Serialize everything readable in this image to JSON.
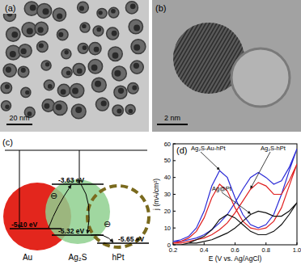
{
  "panels": {
    "a": {
      "label": "(a)",
      "scale_bar": "20 nm"
    },
    "b": {
      "label": "(b)",
      "scale_bar": "2 nm"
    },
    "c": {
      "label": "(c)",
      "electron": "⊖",
      "nodes": [
        {
          "label": "Au",
          "color": "#e3261d",
          "levels": [
            "-5.10 eV"
          ]
        },
        {
          "label": "Ag₂S",
          "color": "#8fd08f",
          "levels": [
            "-3.63 eV",
            "-5.32 eV"
          ]
        },
        {
          "label": "hPt",
          "color": "#7a6a1e",
          "levels": [
            "-5.65 eV"
          ]
        }
      ]
    },
    "d": {
      "label": "(d)"
    }
  },
  "chart_data": {
    "type": "line",
    "x_label": "E (V vs. Ag/AgCl)",
    "y_label": "j (mA/cm²)",
    "xlim": [
      0.2,
      1.0
    ],
    "xticks": [
      0.2,
      0.4,
      0.6,
      0.8,
      {
        "value": 1,
        "label": "1.0"
      }
    ],
    "ylim": [
      0,
      60
    ],
    "yticks": [
      0,
      10,
      20,
      30,
      40,
      50,
      60
    ],
    "series": [
      {
        "name": "Ag₂S-Au-hPt",
        "color": "#2b2bd6",
        "x": [
          0.2,
          0.25,
          0.3,
          0.35,
          0.4,
          0.45,
          0.5,
          0.55,
          0.6,
          0.65,
          0.7,
          0.75,
          0.8,
          0.85,
          0.9,
          0.95,
          1.0,
          1.0,
          0.95,
          0.9,
          0.85,
          0.8,
          0.75,
          0.7,
          0.65,
          0.6,
          0.55,
          0.5,
          0.45,
          0.4,
          0.35,
          0.3,
          0.25,
          0.2
        ],
        "values": [
          2,
          2,
          3,
          4,
          6,
          9,
          13,
          18,
          25,
          33,
          40,
          43,
          40,
          36,
          38,
          46,
          57,
          57,
          44,
          30,
          18,
          12,
          10,
          12,
          18,
          28,
          40,
          44,
          35,
          20,
          10,
          5,
          3,
          2
        ]
      },
      {
        "name": "Ag₂S-hPt",
        "color": "#e02020",
        "x": [
          0.2,
          0.25,
          0.3,
          0.35,
          0.4,
          0.45,
          0.5,
          0.55,
          0.6,
          0.65,
          0.7,
          0.75,
          0.8,
          0.85,
          0.9,
          0.95,
          1.0,
          1.0,
          0.95,
          0.9,
          0.85,
          0.8,
          0.75,
          0.7,
          0.65,
          0.6,
          0.55,
          0.5,
          0.45,
          0.4,
          0.35,
          0.3,
          0.25,
          0.2
        ],
        "values": [
          1,
          1,
          2,
          3,
          4,
          6,
          9,
          13,
          19,
          26,
          33,
          37,
          35,
          30,
          30,
          38,
          48,
          48,
          35,
          22,
          14,
          10,
          9,
          10,
          14,
          22,
          32,
          36,
          28,
          16,
          8,
          4,
          2,
          1
        ]
      },
      {
        "name": "Ag@Pt",
        "color": "#111111",
        "x": [
          0.2,
          0.25,
          0.3,
          0.35,
          0.4,
          0.45,
          0.5,
          0.55,
          0.6,
          0.65,
          0.7,
          0.75,
          0.8,
          0.85,
          0.9,
          0.95,
          1.0,
          1.0,
          0.95,
          0.9,
          0.85,
          0.8,
          0.75,
          0.7,
          0.65,
          0.6,
          0.55,
          0.5,
          0.45,
          0.4,
          0.35,
          0.3,
          0.25,
          0.2
        ],
        "values": [
          0,
          0,
          1,
          1,
          2,
          3,
          5,
          7,
          10,
          14,
          18,
          20,
          19,
          17,
          17,
          20,
          25,
          25,
          18,
          12,
          8,
          6,
          6,
          8,
          12,
          16,
          18,
          15,
          9,
          5,
          3,
          1,
          0,
          0
        ]
      }
    ]
  }
}
